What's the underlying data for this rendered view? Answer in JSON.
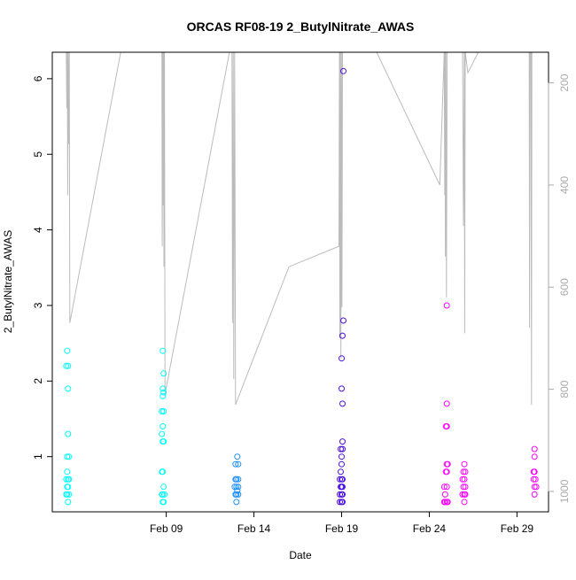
{
  "chart_data": {
    "type": "scatter",
    "title": "ORCAS RF08-19 2_ButylNitrate_AWAS",
    "xlabel": "Date",
    "ylabel": "2_ButylNitrate_AWAS",
    "x_axis": {
      "unit": "day of Feb 2016",
      "range": [
        2.5,
        30.8
      ],
      "ticks": [
        9,
        14,
        19,
        24,
        29
      ],
      "tick_labels": [
        "Feb 09",
        "Feb 14",
        "Feb 19",
        "Feb 24",
        "Feb 29"
      ]
    },
    "y_axis": {
      "range": [
        0.27,
        6.35
      ],
      "ticks": [
        1,
        2,
        3,
        4,
        5,
        6
      ],
      "tick_labels": [
        "1",
        "2",
        "3",
        "4",
        "5",
        "6"
      ]
    },
    "y2_axis": {
      "label": "",
      "reversed": true,
      "range": [
        1040,
        140
      ],
      "ticks": [
        200,
        400,
        600,
        800,
        1000
      ],
      "tick_labels": [
        "200",
        "400",
        "600",
        "800",
        "1000"
      ],
      "color": "#aaaaaa"
    },
    "series": [
      {
        "color": "#00ffff",
        "values": [
          [
            3.35,
            2.4
          ],
          [
            3.3,
            2.2
          ],
          [
            3.4,
            2.2
          ],
          [
            3.4,
            1.9
          ],
          [
            3.4,
            1.3
          ],
          [
            3.35,
            1.0
          ],
          [
            3.45,
            1.0
          ],
          [
            3.35,
            0.8
          ],
          [
            3.4,
            0.7
          ],
          [
            3.3,
            0.7
          ],
          [
            3.45,
            0.7
          ],
          [
            3.35,
            0.6
          ],
          [
            3.4,
            0.6
          ],
          [
            3.3,
            0.5
          ],
          [
            3.45,
            0.5
          ],
          [
            3.35,
            0.5
          ],
          [
            3.4,
            0.4
          ],
          [
            8.8,
            2.4
          ],
          [
            8.85,
            2.1
          ],
          [
            8.8,
            1.9
          ],
          [
            8.85,
            1.85
          ],
          [
            8.8,
            1.8
          ],
          [
            8.75,
            1.6
          ],
          [
            8.85,
            1.6
          ],
          [
            8.8,
            1.4
          ],
          [
            8.75,
            1.3
          ],
          [
            8.8,
            1.2
          ],
          [
            8.85,
            1.2
          ],
          [
            8.75,
            0.8
          ],
          [
            8.8,
            0.8
          ],
          [
            8.85,
            0.6
          ],
          [
            8.8,
            0.5
          ],
          [
            8.75,
            0.5
          ],
          [
            8.9,
            0.5
          ],
          [
            8.8,
            0.4
          ],
          [
            8.85,
            0.4
          ]
        ]
      },
      {
        "color": "#1e90ff",
        "values": [
          [
            13.05,
            1.0
          ],
          [
            12.95,
            0.9
          ],
          [
            13.1,
            0.9
          ],
          [
            13.0,
            0.7
          ],
          [
            12.95,
            0.7
          ],
          [
            13.1,
            0.7
          ],
          [
            13.0,
            0.6
          ],
          [
            12.9,
            0.6
          ],
          [
            13.1,
            0.6
          ],
          [
            13.05,
            0.55
          ],
          [
            12.95,
            0.5
          ],
          [
            13.0,
            0.5
          ],
          [
            13.1,
            0.5
          ],
          [
            13.0,
            0.4
          ]
        ]
      },
      {
        "color": "#4b0fe0",
        "values": [
          [
            19.1,
            6.1
          ],
          [
            19.1,
            2.8
          ],
          [
            19.05,
            2.6
          ],
          [
            19.0,
            2.3
          ],
          [
            19.0,
            1.9
          ],
          [
            19.05,
            1.7
          ],
          [
            19.05,
            1.2
          ],
          [
            18.95,
            1.1
          ],
          [
            19.05,
            1.1
          ],
          [
            19.0,
            1.0
          ],
          [
            19.0,
            0.9
          ],
          [
            18.95,
            0.8
          ],
          [
            19.0,
            0.7
          ],
          [
            18.9,
            0.7
          ],
          [
            19.05,
            0.7
          ],
          [
            19.0,
            0.6
          ],
          [
            18.95,
            0.6
          ],
          [
            19.05,
            0.6
          ],
          [
            18.9,
            0.5
          ],
          [
            19.0,
            0.5
          ],
          [
            19.05,
            0.5
          ],
          [
            18.9,
            0.4
          ],
          [
            19.0,
            0.4
          ],
          [
            19.05,
            0.4
          ]
        ]
      },
      {
        "color": "#ff00ff",
        "values": [
          [
            25.0,
            3.0
          ],
          [
            25.0,
            1.7
          ],
          [
            25.0,
            1.4
          ],
          [
            24.95,
            1.4
          ],
          [
            25.0,
            0.9
          ],
          [
            25.05,
            0.9
          ],
          [
            24.95,
            0.8
          ],
          [
            25.0,
            0.8
          ],
          [
            24.85,
            0.6
          ],
          [
            25.0,
            0.6
          ],
          [
            24.9,
            0.5
          ],
          [
            25.0,
            0.4
          ],
          [
            24.9,
            0.4
          ],
          [
            25.05,
            0.4
          ],
          [
            24.85,
            0.4
          ],
          [
            26.0,
            0.9
          ],
          [
            25.95,
            0.8
          ],
          [
            26.05,
            0.8
          ],
          [
            26.0,
            0.7
          ],
          [
            25.9,
            0.7
          ],
          [
            26.05,
            0.6
          ],
          [
            25.95,
            0.6
          ],
          [
            26.0,
            0.5
          ],
          [
            25.9,
            0.5
          ],
          [
            26.05,
            0.5
          ],
          [
            26.0,
            0.4
          ],
          [
            30.0,
            1.1
          ],
          [
            30.0,
            1.0
          ],
          [
            29.95,
            0.8
          ],
          [
            30.0,
            0.8
          ],
          [
            30.05,
            0.7
          ],
          [
            29.95,
            0.7
          ],
          [
            30.1,
            0.6
          ],
          [
            30.0,
            0.6
          ],
          [
            30.0,
            0.5
          ]
        ]
      }
    ],
    "altitude_trace": {
      "color": "#bbbbbb",
      "axis": "y2",
      "points": [
        [
          3.3,
          140
        ],
        [
          3.33,
          250
        ],
        [
          3.36,
          140
        ],
        [
          3.38,
          420
        ],
        [
          3.41,
          140
        ],
        [
          3.44,
          320
        ],
        [
          3.47,
          140
        ],
        [
          3.5,
          670
        ],
        [
          6.4,
          140
        ],
        [
          8.75,
          140
        ],
        [
          8.77,
          520
        ],
        [
          8.8,
          140
        ],
        [
          8.82,
          440
        ],
        [
          8.85,
          140
        ],
        [
          8.87,
          560
        ],
        [
          8.9,
          140
        ],
        [
          8.93,
          810
        ],
        [
          12.6,
          140
        ],
        [
          12.75,
          140
        ],
        [
          12.78,
          670
        ],
        [
          12.82,
          140
        ],
        [
          12.85,
          780
        ],
        [
          12.9,
          140
        ],
        [
          12.95,
          830
        ],
        [
          16.0,
          560
        ],
        [
          18.85,
          520
        ],
        [
          18.88,
          140
        ],
        [
          18.9,
          700
        ],
        [
          18.93,
          140
        ],
        [
          18.96,
          740
        ],
        [
          18.99,
          140
        ],
        [
          19.02,
          640
        ],
        [
          19.05,
          140
        ],
        [
          21.0,
          140
        ],
        [
          24.6,
          400
        ],
        [
          24.85,
          140
        ],
        [
          24.88,
          420
        ],
        [
          24.9,
          140
        ],
        [
          24.92,
          540
        ],
        [
          24.95,
          140
        ],
        [
          24.98,
          620
        ],
        [
          25.02,
          140
        ],
        [
          25.05,
          140
        ],
        [
          25.9,
          140
        ],
        [
          25.95,
          480
        ],
        [
          26.0,
          140
        ],
        [
          26.02,
          690
        ],
        [
          26.05,
          140
        ],
        [
          26.2,
          180
        ],
        [
          26.8,
          140
        ],
        [
          29.7,
          140
        ],
        [
          29.72,
          680
        ],
        [
          29.75,
          140
        ],
        [
          29.8,
          140
        ],
        [
          29.83,
          830
        ],
        [
          29.85,
          140
        ]
      ]
    }
  }
}
